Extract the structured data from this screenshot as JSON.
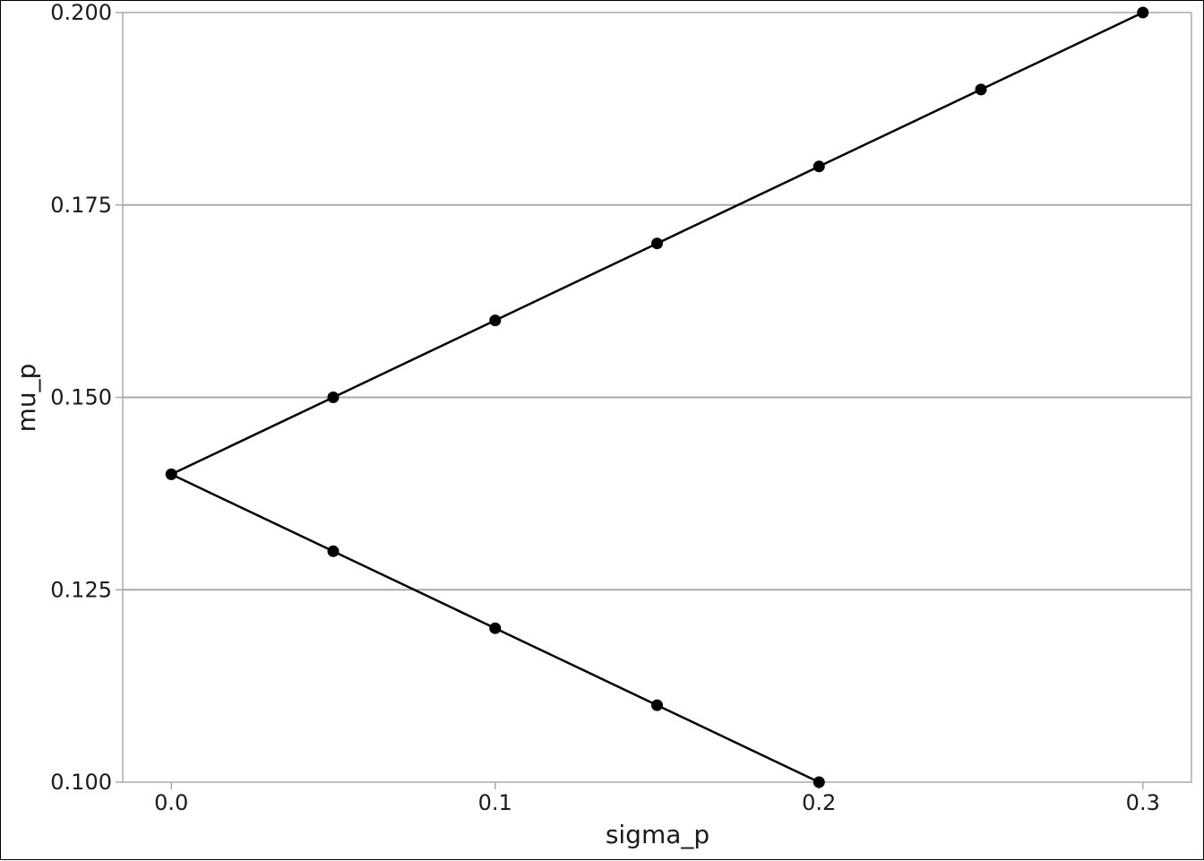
{
  "chart_data": {
    "type": "line",
    "title": "",
    "xlabel": "sigma_p",
    "ylabel": "mu_p",
    "xlim": [
      -0.015,
      0.315
    ],
    "ylim": [
      0.1,
      0.2
    ],
    "xticks": [
      {
        "value": 0.0,
        "label": "0.0"
      },
      {
        "value": 0.1,
        "label": "0.1"
      },
      {
        "value": 0.2,
        "label": "0.2"
      },
      {
        "value": 0.3,
        "label": "0.3"
      }
    ],
    "yticks": [
      {
        "value": 0.1,
        "label": "0.100"
      },
      {
        "value": 0.125,
        "label": "0.125"
      },
      {
        "value": 0.15,
        "label": "0.150"
      },
      {
        "value": 0.175,
        "label": "0.175"
      },
      {
        "value": 0.2,
        "label": "0.200"
      }
    ],
    "grid": "horizontal",
    "legend": "none",
    "line_color": "#000000",
    "grid_color": "#aaaaaa",
    "series": [
      {
        "points": [
          {
            "x": 0.2,
            "y": 0.1
          },
          {
            "x": 0.15,
            "y": 0.11
          },
          {
            "x": 0.1,
            "y": 0.12
          },
          {
            "x": 0.05,
            "y": 0.13
          },
          {
            "x": 0.0,
            "y": 0.14
          },
          {
            "x": 0.05,
            "y": 0.15
          },
          {
            "x": 0.1,
            "y": 0.16
          },
          {
            "x": 0.15,
            "y": 0.17
          },
          {
            "x": 0.2,
            "y": 0.18
          },
          {
            "x": 0.25,
            "y": 0.19
          },
          {
            "x": 0.3,
            "y": 0.2
          }
        ]
      }
    ]
  }
}
